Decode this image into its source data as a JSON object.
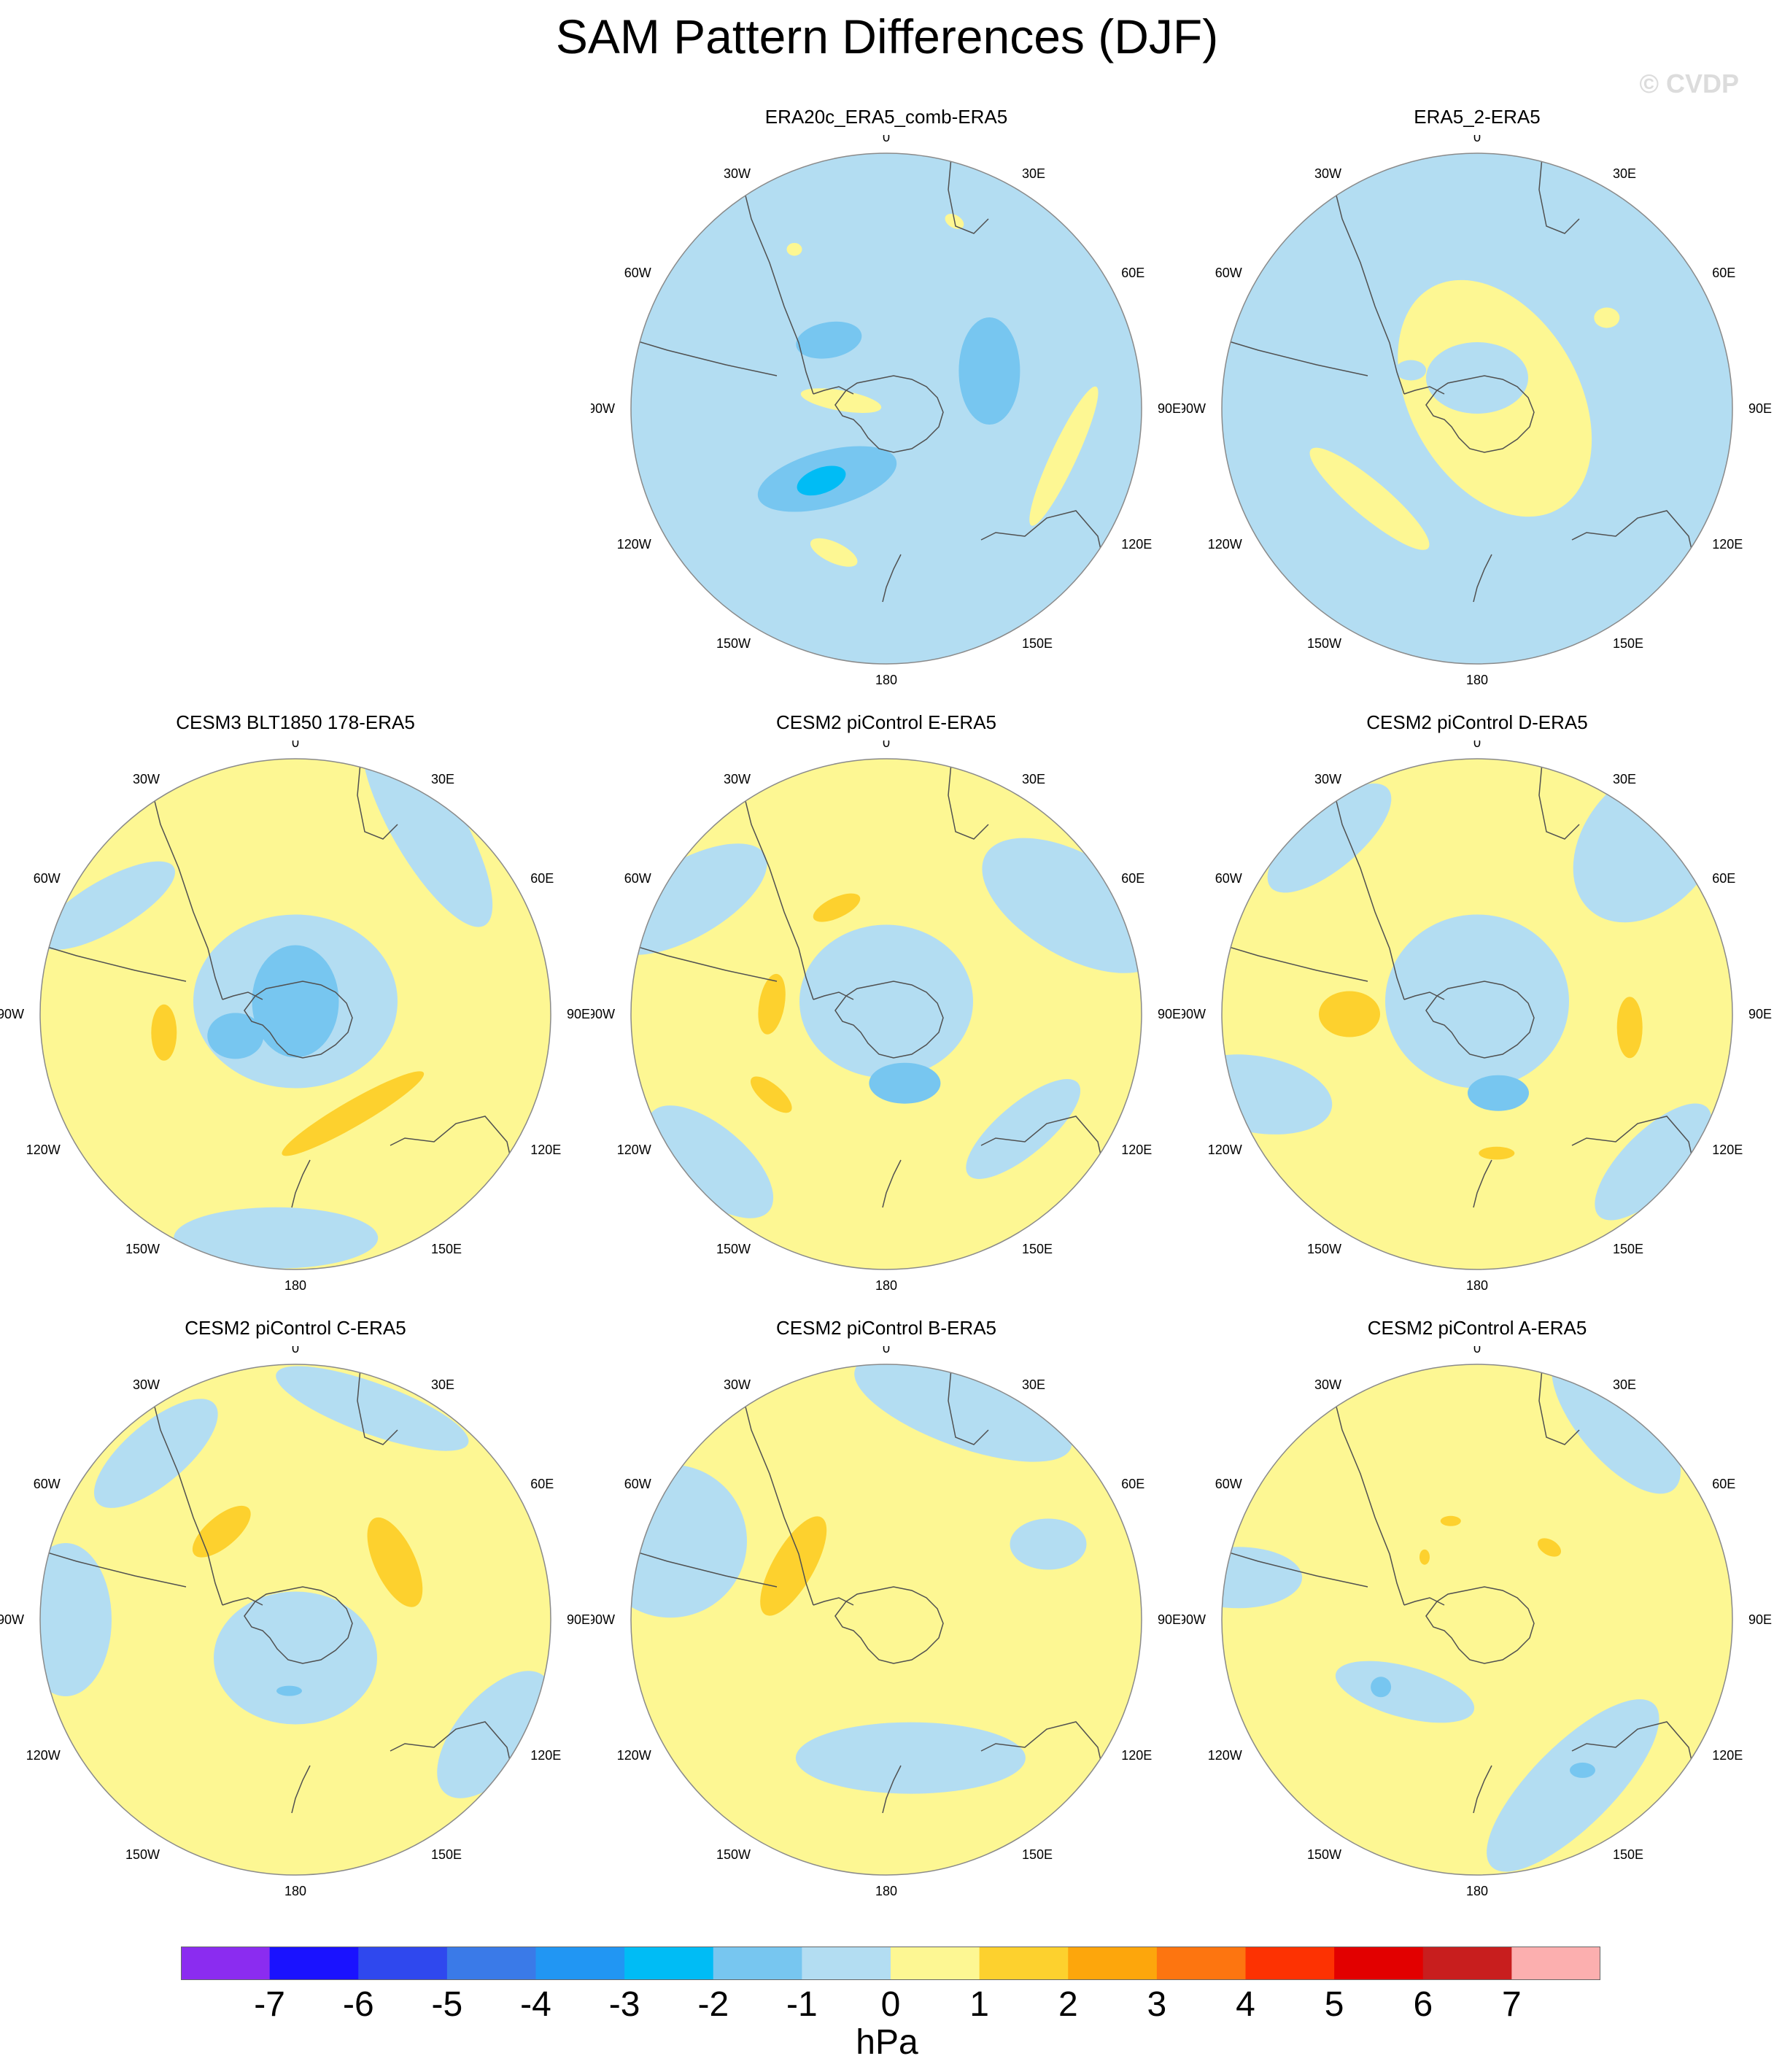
{
  "title": "SAM Pattern Differences (DJF)",
  "watermark": "© CVDP",
  "lon_labels": [
    "0",
    "30E",
    "60E",
    "90E",
    "120E",
    "150E",
    "180",
    "150W",
    "120W",
    "90W",
    "60W",
    "30W"
  ],
  "colors": {
    "ocean_fill": "#b3ddf2",
    "coast": "#505050",
    "circle": "#8a8a8a",
    "levels": [
      "#8b2cf0",
      "#1a12ff",
      "#2f48ee",
      "#3a7ae8",
      "#2196f3",
      "#00bcf5",
      "#77c6f0",
      "#b3ddf2",
      "#fdf793",
      "#fdd12e",
      "#fda60c",
      "#fd7510",
      "#fd3202",
      "#e20000",
      "#c81e1e",
      "#fcafaf"
    ]
  },
  "panels": [
    {
      "title": "ERA20c_ERA5_comb-ERA5",
      "base": -1,
      "features": [
        {
          "v": -2,
          "r": 0.43,
          "th": 70,
          "rx": 0.12,
          "ry": 0.21,
          "rot": 0
        },
        {
          "v": -2,
          "r": 0.35,
          "th": 320,
          "rx": 0.13,
          "ry": 0.07,
          "rot": -10
        },
        {
          "v": -2,
          "r": 0.36,
          "th": 220,
          "rx": 0.28,
          "ry": 0.11,
          "rot": -15
        },
        {
          "v": -3,
          "r": 0.38,
          "th": 222,
          "rx": 0.1,
          "ry": 0.05,
          "rot": -20
        },
        {
          "v": 0,
          "r": 0.18,
          "th": 280,
          "rx": 0.16,
          "ry": 0.04,
          "rot": 10
        },
        {
          "v": 0,
          "r": 0.6,
          "th": 200,
          "rx": 0.1,
          "ry": 0.04,
          "rot": 25
        },
        {
          "v": 0,
          "r": 0.72,
          "th": 105,
          "rx": 0.3,
          "ry": 0.05,
          "rot": -65
        },
        {
          "v": 0,
          "r": 0.72,
          "th": 330,
          "rx": 0.03,
          "ry": 0.025,
          "rot": 0
        },
        {
          "v": 0,
          "r": 0.78,
          "th": 20,
          "rx": 0.04,
          "ry": 0.025,
          "rot": 30
        }
      ]
    },
    {
      "title": "ERA5_2-ERA5",
      "base": -1,
      "features": [
        {
          "v": 0,
          "r": 0.08,
          "th": 60,
          "rx": 0.5,
          "ry": 0.33,
          "rot": 60
        },
        {
          "v": 0,
          "r": 0.55,
          "th": 230,
          "rx": 0.3,
          "ry": 0.07,
          "rot": 40
        },
        {
          "v": -1,
          "r": 0.12,
          "th": 0,
          "rx": 0.2,
          "ry": 0.14,
          "rot": 0
        },
        {
          "v": -1,
          "r": 0.3,
          "th": 300,
          "rx": 0.06,
          "ry": 0.04,
          "rot": 0
        },
        {
          "v": 0,
          "r": 0.62,
          "th": 55,
          "rx": 0.05,
          "ry": 0.04,
          "rot": 0
        }
      ]
    },
    {
      "title": "CESM3 BLT1850 178-ERA5",
      "base": 0,
      "features": [
        {
          "v": -1,
          "r": 0.05,
          "th": 0,
          "rx": 0.4,
          "ry": 0.34,
          "rot": 0
        },
        {
          "v": -2,
          "r": 0.05,
          "th": 0,
          "rx": 0.17,
          "ry": 0.22,
          "rot": 0
        },
        {
          "v": -2,
          "r": 0.25,
          "th": 250,
          "rx": 0.11,
          "ry": 0.09,
          "rot": 0
        },
        {
          "v": 1,
          "r": 0.52,
          "th": 262,
          "rx": 0.05,
          "ry": 0.11,
          "rot": 0
        },
        {
          "v": 1,
          "r": 0.45,
          "th": 150,
          "rx": 0.32,
          "ry": 0.05,
          "rot": -30
        },
        {
          "v": -1,
          "r": 0.9,
          "th": 35,
          "rx": 0.45,
          "ry": 0.14,
          "rot": 60
        },
        {
          "v": -1,
          "r": 0.88,
          "th": 185,
          "rx": 0.4,
          "ry": 0.12,
          "rot": 0
        },
        {
          "v": -1,
          "r": 0.85,
          "th": 300,
          "rx": 0.3,
          "ry": 0.1,
          "rot": -30
        }
      ]
    },
    {
      "title": "CESM2 piControl E-ERA5",
      "base": 0,
      "features": [
        {
          "v": -1,
          "r": 0.05,
          "th": 0,
          "rx": 0.34,
          "ry": 0.3,
          "rot": 0
        },
        {
          "v": -2,
          "r": 0.28,
          "th": 165,
          "rx": 0.14,
          "ry": 0.08,
          "rot": 0
        },
        {
          "v": 1,
          "r": 0.46,
          "th": 335,
          "rx": 0.1,
          "ry": 0.04,
          "rot": -25
        },
        {
          "v": 1,
          "r": 0.45,
          "th": 275,
          "rx": 0.05,
          "ry": 0.12,
          "rot": 10
        },
        {
          "v": 1,
          "r": 0.55,
          "th": 235,
          "rx": 0.1,
          "ry": 0.04,
          "rot": 40
        },
        {
          "v": -1,
          "r": 0.85,
          "th": 60,
          "rx": 0.4,
          "ry": 0.2,
          "rot": 30
        },
        {
          "v": -1,
          "r": 0.7,
          "th": 130,
          "rx": 0.28,
          "ry": 0.1,
          "rot": -40
        },
        {
          "v": -1,
          "r": 0.9,
          "th": 300,
          "rx": 0.35,
          "ry": 0.15,
          "rot": -30
        },
        {
          "v": -1,
          "r": 0.9,
          "th": 230,
          "rx": 0.3,
          "ry": 0.14,
          "rot": 40
        }
      ]
    },
    {
      "title": "CESM2 piControl D-ERA5",
      "base": 0,
      "features": [
        {
          "v": -1,
          "r": 0.05,
          "th": 0,
          "rx": 0.36,
          "ry": 0.34,
          "rot": 0
        },
        {
          "v": -2,
          "r": 0.32,
          "th": 165,
          "rx": 0.12,
          "ry": 0.07,
          "rot": 0
        },
        {
          "v": 1,
          "r": 0.5,
          "th": 270,
          "rx": 0.12,
          "ry": 0.09,
          "rot": 0
        },
        {
          "v": 1,
          "r": 0.6,
          "th": 95,
          "rx": 0.05,
          "ry": 0.12,
          "rot": 0
        },
        {
          "v": 1,
          "r": 0.55,
          "th": 172,
          "rx": 0.07,
          "ry": 0.025,
          "rot": 0
        },
        {
          "v": -1,
          "r": 0.95,
          "th": 45,
          "rx": 0.25,
          "ry": 0.35,
          "rot": 40
        },
        {
          "v": -1,
          "r": 0.92,
          "th": 250,
          "rx": 0.3,
          "ry": 0.15,
          "rot": 10
        },
        {
          "v": -1,
          "r": 0.9,
          "th": 130,
          "rx": 0.3,
          "ry": 0.12,
          "rot": -45
        },
        {
          "v": -1,
          "r": 0.9,
          "th": 320,
          "rx": 0.3,
          "ry": 0.12,
          "rot": -40
        }
      ]
    },
    {
      "title": "CESM2 piControl C-ERA5",
      "base": 0,
      "features": [
        {
          "v": -1,
          "r": 0.15,
          "th": 180,
          "rx": 0.32,
          "ry": 0.26,
          "rot": 0
        },
        {
          "v": -2,
          "r": 0.28,
          "th": 185,
          "rx": 0.05,
          "ry": 0.02,
          "rot": 0
        },
        {
          "v": 1,
          "r": 0.45,
          "th": 320,
          "rx": 0.14,
          "ry": 0.06,
          "rot": -40
        },
        {
          "v": 1,
          "r": 0.45,
          "th": 60,
          "rx": 0.08,
          "ry": 0.19,
          "rot": -25
        },
        {
          "v": -1,
          "r": 0.9,
          "th": 120,
          "rx": 0.3,
          "ry": 0.15,
          "rot": -50
        },
        {
          "v": -1,
          "r": 0.9,
          "th": 270,
          "rx": 0.18,
          "ry": 0.3,
          "rot": 0
        },
        {
          "v": -1,
          "r": 0.88,
          "th": 20,
          "rx": 0.4,
          "ry": 0.1,
          "rot": 20
        },
        {
          "v": -1,
          "r": 0.85,
          "th": 320,
          "rx": 0.3,
          "ry": 0.12,
          "rot": -40
        }
      ]
    },
    {
      "title": "CESM2 piControl B-ERA5",
      "base": 0,
      "features": [
        {
          "v": 1,
          "r": 0.42,
          "th": 300,
          "rx": 0.08,
          "ry": 0.22,
          "rot": 30
        },
        {
          "v": -1,
          "r": 0.55,
          "th": 170,
          "rx": 0.45,
          "ry": 0.14,
          "rot": 0
        },
        {
          "v": -1,
          "r": 0.9,
          "th": 290,
          "rx": 0.3,
          "ry": 0.3,
          "rot": 0
        },
        {
          "v": -1,
          "r": 0.88,
          "th": 20,
          "rx": 0.45,
          "ry": 0.15,
          "rot": 20
        },
        {
          "v": -1,
          "r": 0.7,
          "th": 65,
          "rx": 0.15,
          "ry": 0.1,
          "rot": 0
        }
      ]
    },
    {
      "title": "CESM2 piControl A-ERA5",
      "base": 0,
      "features": [
        {
          "v": -1,
          "r": 0.4,
          "th": 225,
          "rx": 0.28,
          "ry": 0.1,
          "rot": 15
        },
        {
          "v": -2,
          "r": 0.46,
          "th": 235,
          "rx": 0.04,
          "ry": 0.04,
          "rot": 0
        },
        {
          "v": -1,
          "r": 0.75,
          "th": 150,
          "rx": 0.45,
          "ry": 0.16,
          "rot": -45
        },
        {
          "v": -2,
          "r": 0.72,
          "th": 145,
          "rx": 0.05,
          "ry": 0.03,
          "rot": 0
        },
        {
          "v": 1,
          "r": 0.4,
          "th": 345,
          "rx": 0.04,
          "ry": 0.02,
          "rot": 0
        },
        {
          "v": 1,
          "r": 0.4,
          "th": 45,
          "rx": 0.05,
          "ry": 0.03,
          "rot": 30
        },
        {
          "v": 1,
          "r": 0.32,
          "th": 320,
          "rx": 0.02,
          "ry": 0.03,
          "rot": 0
        },
        {
          "v": -1,
          "r": 0.95,
          "th": 35,
          "rx": 0.35,
          "ry": 0.15,
          "rot": 50
        },
        {
          "v": -1,
          "r": 0.95,
          "th": 280,
          "rx": 0.25,
          "ry": 0.12,
          "rot": 0
        }
      ]
    }
  ],
  "colorbar": {
    "tick_labels": [
      "-7",
      "-6",
      "-5",
      "-4",
      "-3",
      "-2",
      "-1",
      "0",
      "1",
      "2",
      "3",
      "4",
      "5",
      "6",
      "7"
    ],
    "unit": "hPa"
  }
}
